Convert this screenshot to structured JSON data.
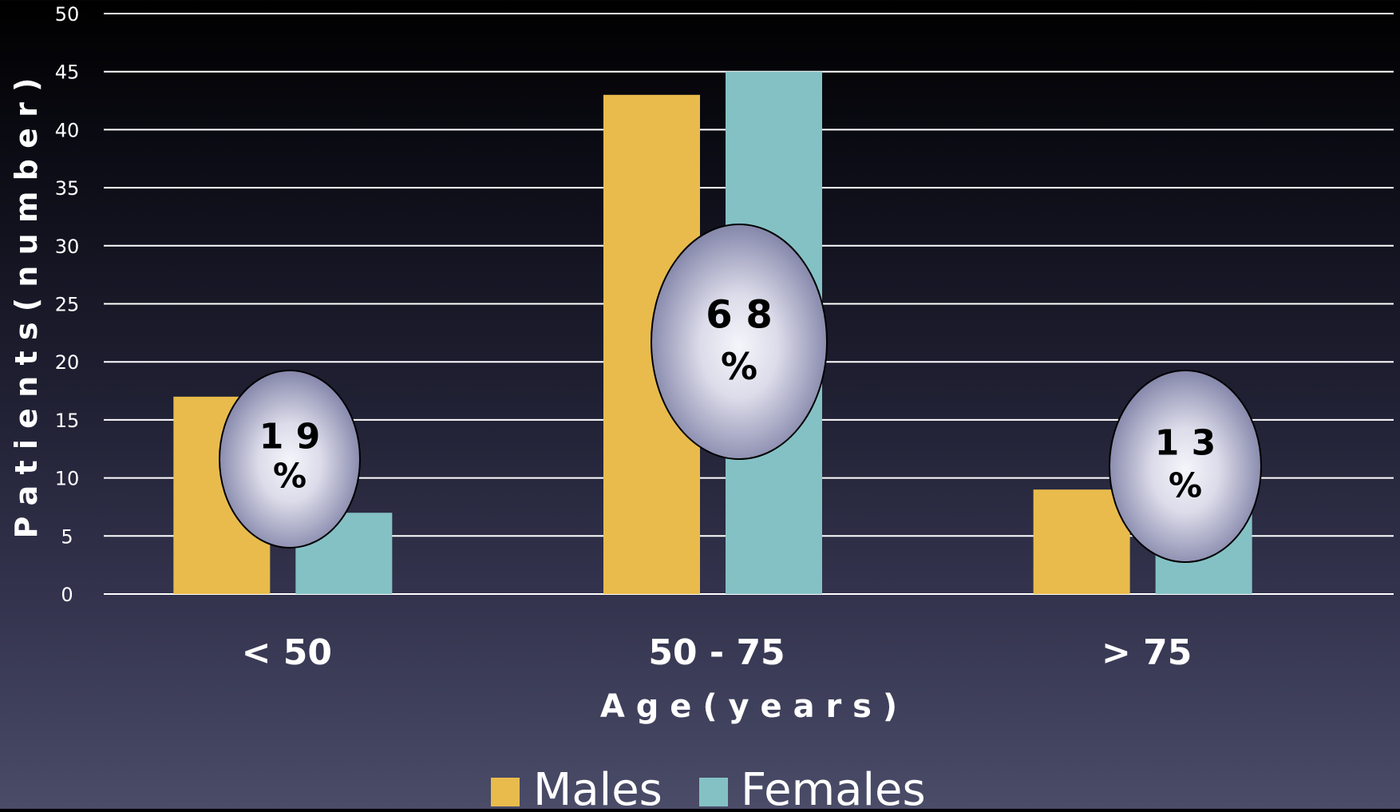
{
  "chart_data": {
    "type": "bar",
    "title": "",
    "xlabel": "A g e   ( y e a r s )",
    "ylabel": "P a t i e n t s   ( n u m b e r )",
    "categories": [
      "< 50",
      "50 - 75",
      "> 75"
    ],
    "series": [
      {
        "name": "Males",
        "values": [
          17,
          43,
          9
        ]
      },
      {
        "name": "Females",
        "values": [
          7,
          45,
          8
        ]
      }
    ],
    "ylim": [
      0,
      50
    ],
    "yticks": [
      0,
      5,
      10,
      15,
      20,
      25,
      30,
      35,
      40,
      45,
      50
    ],
    "grid": true,
    "legend": "bottom-center",
    "annotations": [
      {
        "category": "< 50",
        "number": "1 9",
        "percent": "%"
      },
      {
        "category": "50 - 75",
        "number": "6 8",
        "percent": "%"
      },
      {
        "category": "> 75",
        "number": "1 3",
        "percent": "%"
      }
    ],
    "colors": {
      "Males": "#e8bb4c",
      "Females": "#84c1c5",
      "grid": "#ffffff",
      "text": "#ffffff"
    }
  }
}
